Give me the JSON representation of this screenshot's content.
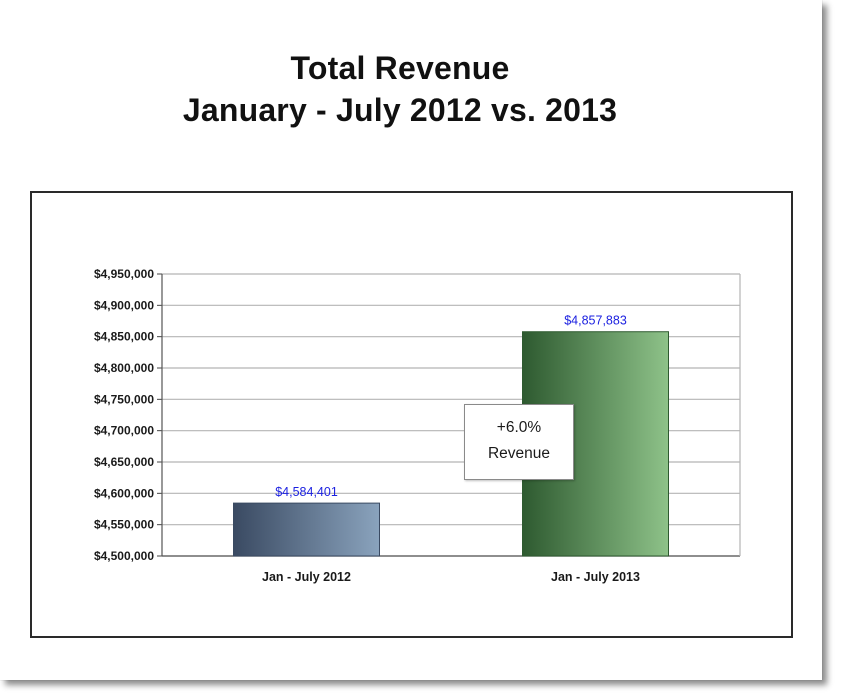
{
  "title_lines": [
    "Total Revenue",
    "January - July 2012 vs. 2013"
  ],
  "callout": {
    "line1": "+6.0%",
    "line2": "Revenue"
  },
  "colors": {
    "bar_2012_dark": "#3a4a62",
    "bar_2012_light": "#8aa3bd",
    "bar_2013_dark": "#2e5a30",
    "bar_2013_light": "#8ec289",
    "data_label": "#1a1fe0",
    "grid": "#b5b5b5"
  },
  "chart_data": {
    "type": "bar",
    "title": "Total Revenue January - July 2012 vs. 2013",
    "categories": [
      "Jan - July 2012",
      "Jan - July 2013"
    ],
    "values": [
      4584401,
      4857883
    ],
    "data_labels": [
      "$4,584,401",
      "$4,857,883"
    ],
    "yticks": [
      "$4,500,000",
      "$4,550,000",
      "$4,600,000",
      "$4,650,000",
      "$4,700,000",
      "$4,750,000",
      "$4,800,000",
      "$4,850,000",
      "$4,900,000",
      "$4,950,000"
    ],
    "ylim": [
      4500000,
      4950000
    ],
    "ystep": 50000,
    "grid": true,
    "xlabel": "",
    "ylabel": ""
  }
}
